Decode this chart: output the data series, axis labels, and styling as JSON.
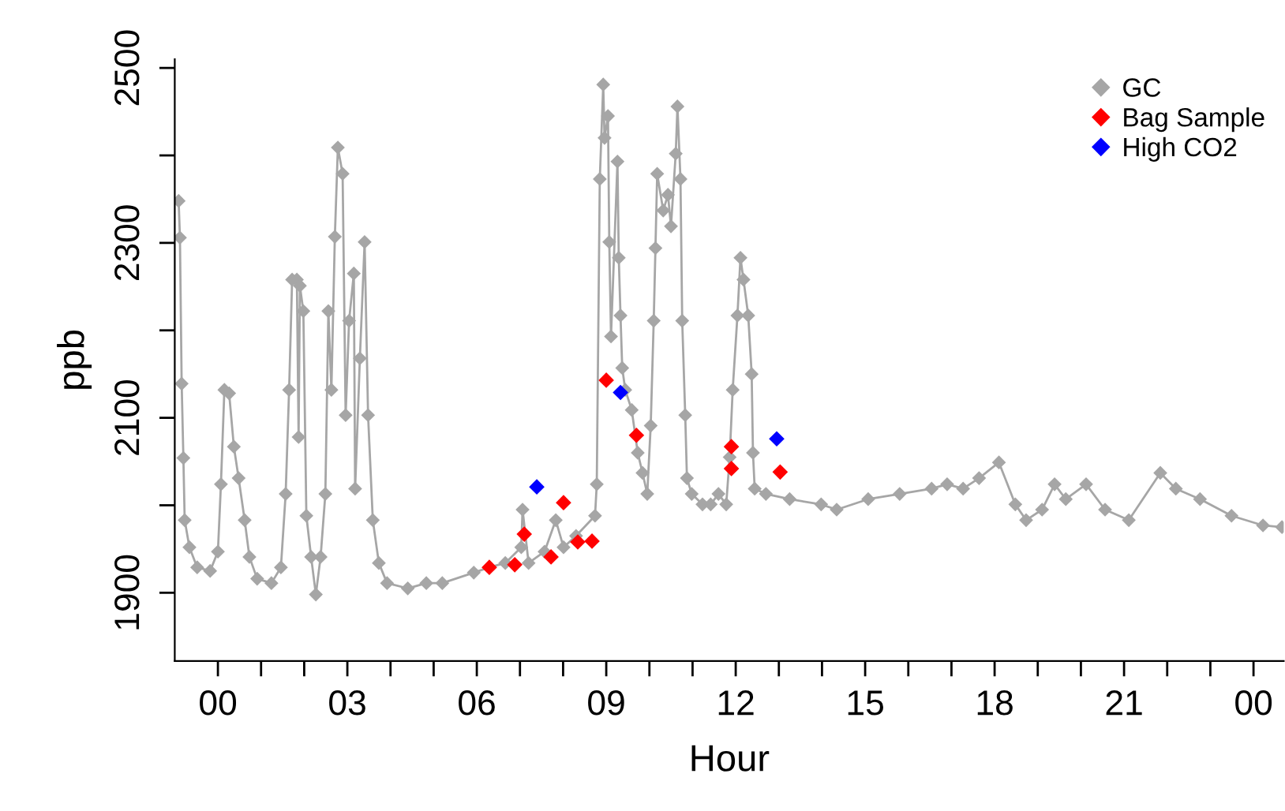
{
  "chart_data": {
    "type": "line",
    "xlabel": "Hour",
    "ylabel": "ppb",
    "xlim": [
      -1.0,
      24.7
    ],
    "ylim": [
      1822,
      2510
    ],
    "xticks": [
      {
        "value": 0,
        "label": "00"
      },
      {
        "value": 1,
        "label": null
      },
      {
        "value": 2,
        "label": null
      },
      {
        "value": 3,
        "label": "03"
      },
      {
        "value": 4,
        "label": null
      },
      {
        "value": 5,
        "label": null
      },
      {
        "value": 6,
        "label": "06"
      },
      {
        "value": 7,
        "label": null
      },
      {
        "value": 8,
        "label": null
      },
      {
        "value": 9,
        "label": "09"
      },
      {
        "value": 10,
        "label": null
      },
      {
        "value": 11,
        "label": null
      },
      {
        "value": 12,
        "label": "12"
      },
      {
        "value": 13,
        "label": null
      },
      {
        "value": 14,
        "label": null
      },
      {
        "value": 15,
        "label": "15"
      },
      {
        "value": 16,
        "label": null
      },
      {
        "value": 17,
        "label": null
      },
      {
        "value": 18,
        "label": "18"
      },
      {
        "value": 19,
        "label": null
      },
      {
        "value": 20,
        "label": null
      },
      {
        "value": 21,
        "label": "21"
      },
      {
        "value": 22,
        "label": null
      },
      {
        "value": 23,
        "label": null
      },
      {
        "value": 24,
        "label": "00"
      }
    ],
    "yticks": [
      1900,
      {
        "value": 2000,
        "label": null
      },
      2100,
      {
        "value": 2200,
        "label": null
      },
      2300,
      {
        "value": 2400,
        "label": null
      },
      2500
    ],
    "grid": false,
    "legend": "top right",
    "marker": "diamond",
    "series": [
      {
        "name": "GC",
        "color": "#a6a6a6",
        "x": [
          -0.91,
          -0.88,
          -0.84,
          -0.8,
          -0.77,
          -0.66,
          -0.48,
          -0.18,
          0.0,
          0.07,
          0.15,
          0.26,
          0.37,
          0.48,
          0.62,
          0.73,
          0.91,
          1.24,
          1.46,
          1.57,
          1.65,
          1.72,
          1.83,
          1.87,
          1.9,
          1.98,
          2.05,
          2.16,
          2.27,
          2.38,
          2.49,
          2.56,
          2.63,
          2.71,
          2.78,
          2.89,
          2.96,
          3.04,
          3.15,
          3.18,
          3.29,
          3.4,
          3.48,
          3.59,
          3.73,
          3.92,
          4.4,
          4.83,
          5.2,
          5.93,
          6.29,
          6.66,
          7.03,
          7.06,
          7.2,
          7.57,
          7.83,
          8.01,
          8.3,
          8.74,
          8.78,
          8.85,
          8.93,
          8.96,
          9.04,
          9.07,
          9.11,
          9.26,
          9.29,
          9.33,
          9.37,
          9.44,
          9.59,
          9.73,
          9.84,
          9.95,
          10.03,
          10.1,
          10.14,
          10.18,
          10.32,
          10.43,
          10.5,
          10.61,
          10.65,
          10.72,
          10.76,
          10.83,
          10.87,
          10.98,
          11.23,
          11.42,
          11.6,
          11.78,
          11.86,
          11.93,
          12.04,
          12.11,
          12.18,
          12.29,
          12.37,
          12.4,
          12.44,
          12.7,
          13.25,
          13.98,
          14.34,
          15.07,
          15.8,
          16.54,
          16.9,
          17.27,
          17.64,
          18.1,
          18.48,
          18.73,
          19.1,
          19.39,
          19.65,
          20.12,
          20.56,
          21.11,
          21.84,
          22.2,
          22.76,
          23.49,
          24.22,
          24.66
        ],
        "values": [
          2348,
          2306,
          2139,
          2054,
          1983,
          1952,
          1929,
          1925,
          1947,
          2024,
          2132,
          2128,
          2067,
          2031,
          1983,
          1941,
          1916,
          1911,
          1929,
          2013,
          2132,
          2258,
          2258,
          2078,
          2251,
          2222,
          1988,
          1941,
          1898,
          1941,
          2013,
          2222,
          2132,
          2307,
          2409,
          2379,
          2103,
          2211,
          2265,
          2019,
          2168,
          2301,
          2103,
          1983,
          1934,
          1911,
          1905,
          1911,
          1911,
          1923,
          1929,
          1934,
          1952,
          1995,
          1934,
          1947,
          1983,
          1952,
          1965,
          1988,
          2024,
          2373,
          2481,
          2420,
          2445,
          2301,
          2193,
          2393,
          2283,
          2217,
          2157,
          2132,
          2109,
          2060,
          2037,
          2013,
          2091,
          2211,
          2294,
          2379,
          2337,
          2355,
          2319,
          2402,
          2456,
          2373,
          2211,
          2103,
          2031,
          2013,
          2001,
          2001,
          2013,
          2001,
          2055,
          2132,
          2217,
          2283,
          2258,
          2217,
          2150,
          2060,
          2019,
          2013,
          2007,
          2001,
          1995,
          2007,
          2013,
          2019,
          2024,
          2019,
          2031,
          2049,
          2001,
          1983,
          1995,
          2024,
          2007,
          2024,
          1995,
          1983,
          2037,
          2019,
          2007,
          1988,
          1977,
          1975
        ]
      },
      {
        "name": "Bag Sample",
        "type": "scatter",
        "color": "#ff0000",
        "x": [
          6.29,
          6.88,
          7.1,
          7.72,
          8.01,
          8.34,
          8.67,
          9.0,
          9.7,
          11.9,
          11.9,
          13.03
        ],
        "values": [
          1929,
          1932,
          1967,
          1941,
          2003,
          1958,
          1959,
          2143,
          2080,
          2067,
          2042,
          2038
        ]
      },
      {
        "name": "High CO2",
        "type": "scatter",
        "color": "#0000ff",
        "x": [
          7.39,
          9.33,
          12.95
        ],
        "values": [
          2021,
          2129,
          2076
        ]
      }
    ]
  }
}
